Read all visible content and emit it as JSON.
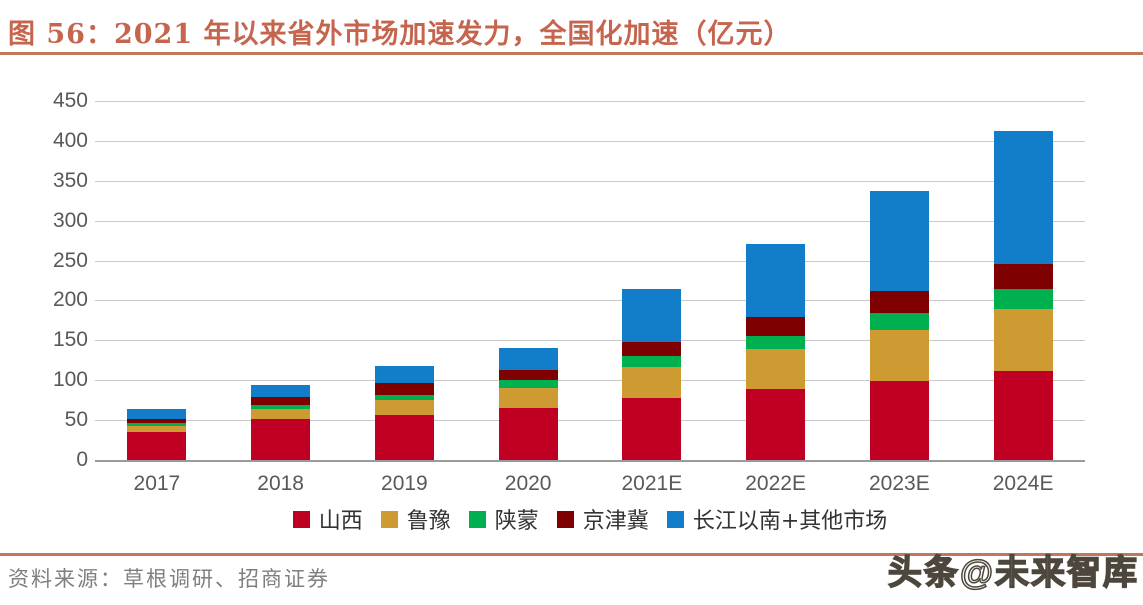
{
  "page": {
    "title": "图 56：2021 年以来省外市场加速发力，全国化加速（亿元）",
    "source": "资料来源：草根调研、招商证券",
    "watermark": "头条@未来智库"
  },
  "colors": {
    "title_text": "#C6654D",
    "divider_line": "#C2765C",
    "axis_text": "#595959",
    "gridline": "#C9C9C9",
    "axis_line": "#9B9B9B",
    "legend_text": "#333333",
    "source_text": "#7F7F7F"
  },
  "chart_data": {
    "type": "bar",
    "stacked": true,
    "title": "2021 年以来省外市场加速发力，全国化加速",
    "unit": "亿元",
    "categories": [
      "2017",
      "2018",
      "2019",
      "2020",
      "2021E",
      "2022E",
      "2023E",
      "2024E"
    ],
    "series": [
      {
        "name": "山西",
        "color": "#C00023",
        "values": [
          35,
          51,
          56,
          65,
          78,
          89,
          99,
          112
        ]
      },
      {
        "name": "鲁豫",
        "color": "#CE9B32",
        "values": [
          8,
          13,
          19,
          25,
          39,
          50,
          64,
          77
        ]
      },
      {
        "name": "陕蒙",
        "color": "#00B050",
        "values": [
          3,
          5,
          7,
          10,
          13,
          17,
          21,
          25
        ]
      },
      {
        "name": "京津冀",
        "color": "#7E0000",
        "values": [
          6,
          10,
          14,
          13,
          18,
          23,
          28,
          32
        ]
      },
      {
        "name": "长江以南+其他市场",
        "color": "#127DC9",
        "values": [
          12,
          15,
          22,
          27,
          66,
          92,
          125,
          167
        ]
      }
    ],
    "totals": [
      64,
      94,
      118,
      140,
      214,
      271,
      337,
      413
    ],
    "ylim": [
      0,
      450
    ],
    "ytick_step": 50,
    "yticks": [
      0,
      50,
      100,
      150,
      200,
      250,
      300,
      350,
      400,
      450
    ],
    "grid": true,
    "legend_position": "bottom"
  }
}
